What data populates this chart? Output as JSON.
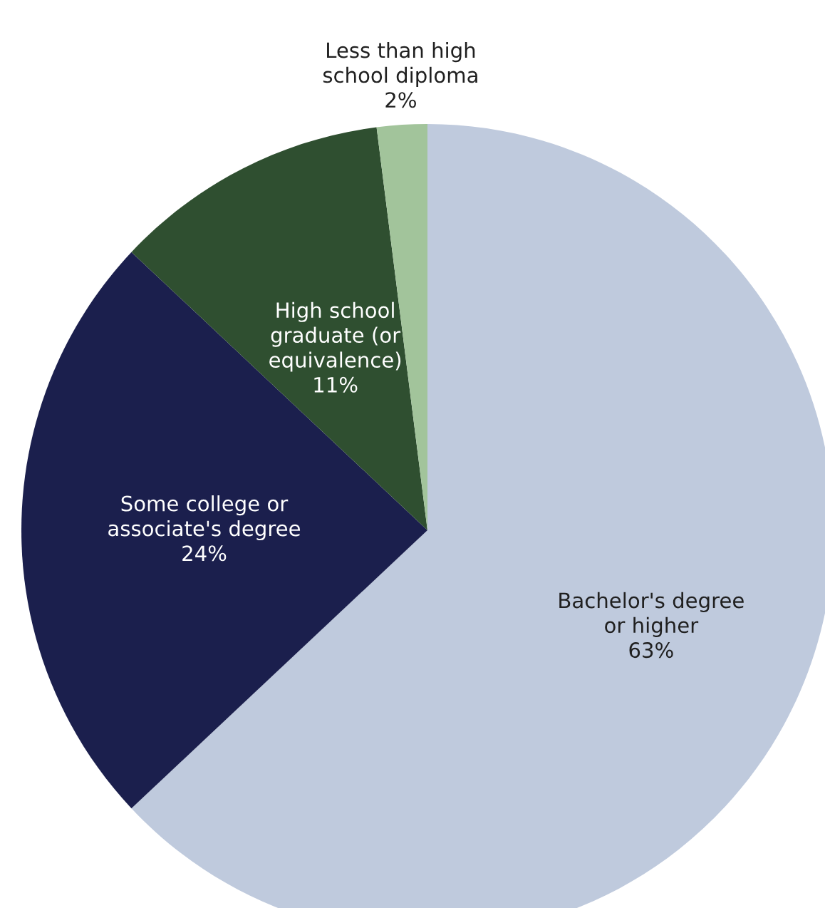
{
  "chart_data": {
    "type": "pie",
    "categories": [
      "Bachelor's degree\nor higher",
      "Some college or\nassociate's degree",
      "High school\ngraduate (or\nequivalence)",
      "Less than high\nschool diploma"
    ],
    "values": [
      63,
      24,
      11,
      2
    ],
    "value_labels": [
      "63%",
      "24%",
      "11%",
      "2%"
    ],
    "colors": [
      "#bfcadd",
      "#1b1f4d",
      "#2f4f30",
      "#a2c49b"
    ]
  }
}
